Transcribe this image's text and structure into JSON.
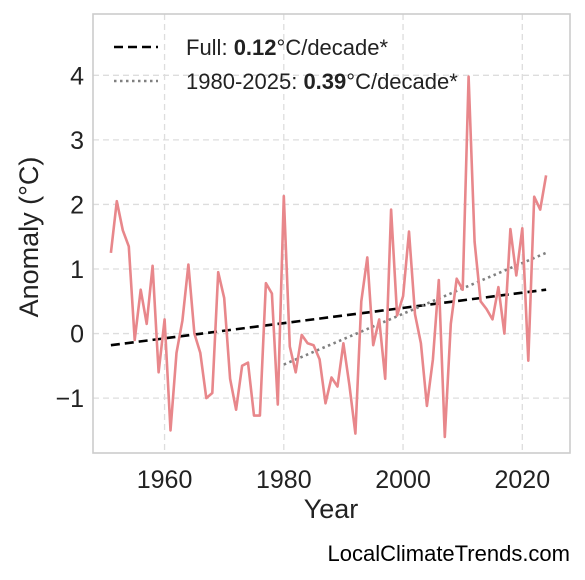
{
  "chart_data": {
    "type": "line",
    "xlabel": "Year",
    "ylabel": "Anomaly (°C)",
    "xlim": [
      1948,
      2028
    ],
    "ylim": [
      -1.85,
      4.95
    ],
    "grid": true,
    "legend_position": "top-left",
    "x_ticks": [
      {
        "value": 1960,
        "label": "1960"
      },
      {
        "value": 1980,
        "label": "1980"
      },
      {
        "value": 2000,
        "label": "2000"
      },
      {
        "value": 2020,
        "label": "2020"
      }
    ],
    "y_ticks": [
      {
        "value": -1,
        "label": "−1"
      },
      {
        "value": 0,
        "label": "0"
      },
      {
        "value": 1,
        "label": "1"
      },
      {
        "value": 2,
        "label": "2"
      },
      {
        "value": 3,
        "label": "3"
      },
      {
        "value": 4,
        "label": "4"
      }
    ],
    "series": [
      {
        "color": "#e8878b",
        "x": [
          1951,
          1952,
          1953,
          1954,
          1955,
          1956,
          1957,
          1958,
          1959,
          1960,
          1961,
          1962,
          1963,
          1964,
          1965,
          1966,
          1967,
          1968,
          1969,
          1970,
          1971,
          1972,
          1973,
          1974,
          1975,
          1976,
          1977,
          1978,
          1979,
          1980,
          1981,
          1982,
          1983,
          1984,
          1985,
          1986,
          1987,
          1988,
          1989,
          1990,
          1991,
          1992,
          1993,
          1994,
          1995,
          1996,
          1997,
          1998,
          1999,
          2000,
          2001,
          2002,
          2003,
          2004,
          2005,
          2006,
          2007,
          2008,
          2009,
          2010,
          2011,
          2012,
          2013,
          2014,
          2015,
          2016,
          2017,
          2018,
          2019,
          2020,
          2021,
          2022,
          2023,
          2024
        ],
        "y": [
          1.25,
          2.05,
          1.6,
          1.35,
          -0.1,
          0.68,
          0.15,
          1.05,
          -0.6,
          0.22,
          -1.5,
          -0.3,
          0.2,
          1.07,
          0.0,
          -0.3,
          -1.0,
          -0.92,
          0.95,
          0.55,
          -0.7,
          -1.18,
          -0.5,
          -0.45,
          -1.27,
          -1.27,
          0.78,
          0.62,
          -1.1,
          2.13,
          -0.2,
          -0.6,
          -0.02,
          -0.15,
          -0.18,
          -0.4,
          -1.08,
          -0.68,
          -0.82,
          -0.15,
          -0.8,
          -1.55,
          0.5,
          1.18,
          -0.18,
          0.22,
          -0.7,
          1.92,
          0.28,
          0.58,
          1.58,
          0.3,
          -0.15,
          -1.12,
          -0.4,
          0.83,
          -1.6,
          0.15,
          0.85,
          0.68,
          3.98,
          1.42,
          0.5,
          0.38,
          0.22,
          0.72,
          0.0,
          1.62,
          0.9,
          1.63,
          -0.42,
          2.12,
          1.92,
          2.45
        ]
      }
    ],
    "trend_lines": [
      {
        "name": "Full",
        "rate": "0.12",
        "unit": "°C/decade*",
        "style": "dashed",
        "color": "#000000",
        "x": [
          1951,
          2024
        ],
        "y": [
          -0.18,
          0.68
        ]
      },
      {
        "name": "1980-2025",
        "rate": "0.39",
        "unit": "°C/decade*",
        "style": "dotted",
        "color": "#808080",
        "x": [
          1980,
          2024
        ],
        "y": [
          -0.48,
          1.25
        ]
      }
    ]
  },
  "legend": {
    "full_prefix": "Full: ",
    "full_rate": "0.12",
    "full_suffix": "°C/decade*",
    "recent_prefix": "1980-2025: ",
    "recent_rate": "0.39",
    "recent_suffix": "°C/decade*"
  },
  "watermark": "LocalClimateTrends.com"
}
